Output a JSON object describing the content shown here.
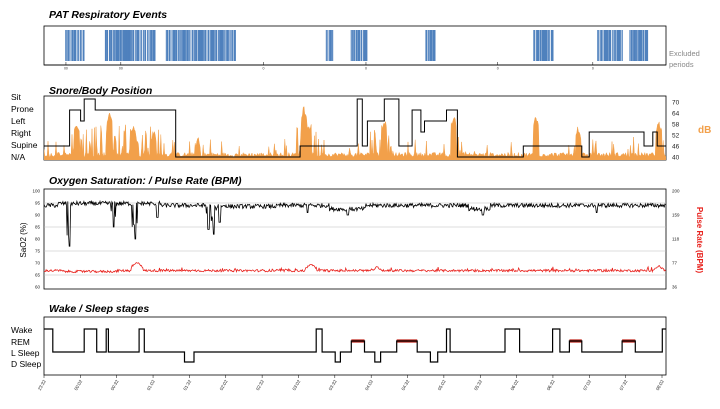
{
  "colors": {
    "event": "#4f81bd",
    "snore": "#f2a04a",
    "position": "#000000",
    "spo2": "#000000",
    "pulse": "#e8221d",
    "sleep": "#000000",
    "rem": "#c0281e",
    "excluded": "#888888",
    "db": "#f2a04a"
  },
  "chart_data": [
    {
      "type": "event-raster",
      "title": "PAT  Respiratory Events",
      "side_label": "Excluded periods",
      "x_range_hours": [
        0,
        8.5
      ],
      "event_clusters_hours": [
        [
          0.28,
          0.55
        ],
        [
          0.82,
          1.52
        ],
        [
          1.66,
          2.6
        ],
        [
          3.85,
          3.95
        ],
        [
          4.18,
          4.42
        ],
        [
          5.2,
          5.35
        ],
        [
          6.68,
          6.95
        ],
        [
          7.55,
          7.9
        ],
        [
          8.0,
          8.25
        ]
      ],
      "lower_tick_labels": [
        "00",
        "00",
        "0",
        "0",
        "0",
        "0"
      ]
    },
    {
      "type": "line+area",
      "title": "Snore/Body Position",
      "position_labels": [
        "Sit",
        "Prone",
        "Left",
        "Right",
        "Supine",
        "N/A"
      ],
      "db_label": "dB",
      "db_ticks": [
        70,
        64,
        58,
        52,
        46,
        40
      ],
      "db_range": [
        40,
        70
      ],
      "position_states_hourly": [
        [
          0.0,
          "Supine"
        ],
        [
          0.35,
          "Prone"
        ],
        [
          0.5,
          "Left"
        ],
        [
          0.55,
          "Sit"
        ],
        [
          0.7,
          "Prone"
        ],
        [
          1.8,
          "N/A"
        ],
        [
          3.5,
          "Supine"
        ],
        [
          4.28,
          "Sit"
        ],
        [
          4.35,
          "Supine"
        ],
        [
          4.42,
          "Left"
        ],
        [
          4.65,
          "Sit"
        ],
        [
          4.85,
          "Supine"
        ],
        [
          5.03,
          "Prone"
        ],
        [
          5.15,
          "Right"
        ],
        [
          5.2,
          "Left"
        ],
        [
          5.5,
          "Prone"
        ],
        [
          5.65,
          "N/A"
        ],
        [
          6.55,
          "Supine"
        ],
        [
          7.35,
          "N/A"
        ],
        [
          7.45,
          "Right"
        ],
        [
          8.2,
          "Supine"
        ],
        [
          8.32,
          "Right"
        ],
        [
          8.38,
          "Supine"
        ]
      ],
      "snore_peaks_db": [
        {
          "t": 0.45,
          "db": 60
        },
        {
          "t": 0.9,
          "db": 66
        },
        {
          "t": 1.22,
          "db": 58
        },
        {
          "t": 1.5,
          "db": 56
        },
        {
          "t": 2.1,
          "db": 52
        },
        {
          "t": 3.55,
          "db": 68
        },
        {
          "t": 3.62,
          "db": 60
        },
        {
          "t": 4.65,
          "db": 62
        },
        {
          "t": 5.6,
          "db": 64
        },
        {
          "t": 6.72,
          "db": 64
        },
        {
          "t": 7.3,
          "db": 58
        },
        {
          "t": 8.4,
          "db": 60
        }
      ]
    },
    {
      "type": "line",
      "title": "Oxygen Saturation: / Pulse Rate (BPM)",
      "left_axis": {
        "label": "SaO2 (%)",
        "ticks": [
          100,
          95,
          90,
          85,
          80,
          75,
          70,
          65,
          60
        ],
        "range": [
          60,
          100
        ]
      },
      "right_axis": {
        "label": "Pulse Rate (BPM)",
        "ticks": [
          200,
          159,
          118,
          77,
          36
        ],
        "range": [
          36,
          200
        ]
      },
      "spo2_baseline_pct": 94,
      "spo2_dips": [
        {
          "t": 0.35,
          "min_pct": 77
        },
        {
          "t": 0.95,
          "min_pct": 85
        },
        {
          "t": 1.25,
          "min_pct": 80
        },
        {
          "t": 1.55,
          "min_pct": 89
        },
        {
          "t": 2.25,
          "min_pct": 84
        },
        {
          "t": 2.32,
          "min_pct": 82
        },
        {
          "t": 2.4,
          "min_pct": 87
        },
        {
          "t": 3.6,
          "min_pct": 91
        },
        {
          "t": 4.15,
          "min_pct": 90
        },
        {
          "t": 6.0,
          "min_pct": 90
        },
        {
          "t": 7.55,
          "min_pct": 91
        }
      ],
      "pulse_baseline_bpm": 64,
      "pulse_peaks_bpm": [
        {
          "t": 1.27,
          "bpm": 80
        },
        {
          "t": 3.65,
          "bpm": 77
        },
        {
          "t": 4.55,
          "bpm": 72
        },
        {
          "t": 8.4,
          "bpm": 74
        }
      ]
    },
    {
      "type": "step",
      "title": "Wake / Sleep stages",
      "stage_labels": [
        "Wake",
        "REM",
        "L Sleep",
        "D Sleep"
      ],
      "hypnogram_hours": [
        [
          0.0,
          "Wake"
        ],
        [
          0.12,
          "L Sleep"
        ],
        [
          0.55,
          "Wake"
        ],
        [
          0.72,
          "L Sleep"
        ],
        [
          0.85,
          "Wake"
        ],
        [
          0.88,
          "L Sleep"
        ],
        [
          1.3,
          "Wake"
        ],
        [
          1.37,
          "L Sleep"
        ],
        [
          1.92,
          "D Sleep"
        ],
        [
          2.05,
          "L Sleep"
        ],
        [
          3.72,
          "Wake"
        ],
        [
          3.8,
          "L Sleep"
        ],
        [
          3.98,
          "D Sleep"
        ],
        [
          4.05,
          "L Sleep"
        ],
        [
          4.2,
          "REM"
        ],
        [
          4.38,
          "L Sleep"
        ],
        [
          4.52,
          "D Sleep"
        ],
        [
          4.6,
          "L Sleep"
        ],
        [
          4.82,
          "REM"
        ],
        [
          5.1,
          "L Sleep"
        ],
        [
          5.28,
          "D Sleep"
        ],
        [
          5.38,
          "L Sleep"
        ],
        [
          5.5,
          "Wake"
        ],
        [
          5.55,
          "L Sleep"
        ],
        [
          6.3,
          "Wake"
        ],
        [
          6.5,
          "L Sleep"
        ],
        [
          6.95,
          "Wake"
        ],
        [
          7.05,
          "L Sleep"
        ],
        [
          7.18,
          "REM"
        ],
        [
          7.35,
          "L Sleep"
        ],
        [
          7.9,
          "REM"
        ],
        [
          8.08,
          "L Sleep"
        ],
        [
          8.45,
          "Wake"
        ]
      ],
      "x_tick_labels": [
        "23:32",
        "00:02",
        "00:32",
        "01:02",
        "01:32",
        "02:02",
        "02:32",
        "03:02",
        "03:32",
        "04:02",
        "04:32",
        "05:02",
        "05:32",
        "06:02",
        "06:32",
        "07:02",
        "07:32",
        "08:02"
      ]
    }
  ]
}
